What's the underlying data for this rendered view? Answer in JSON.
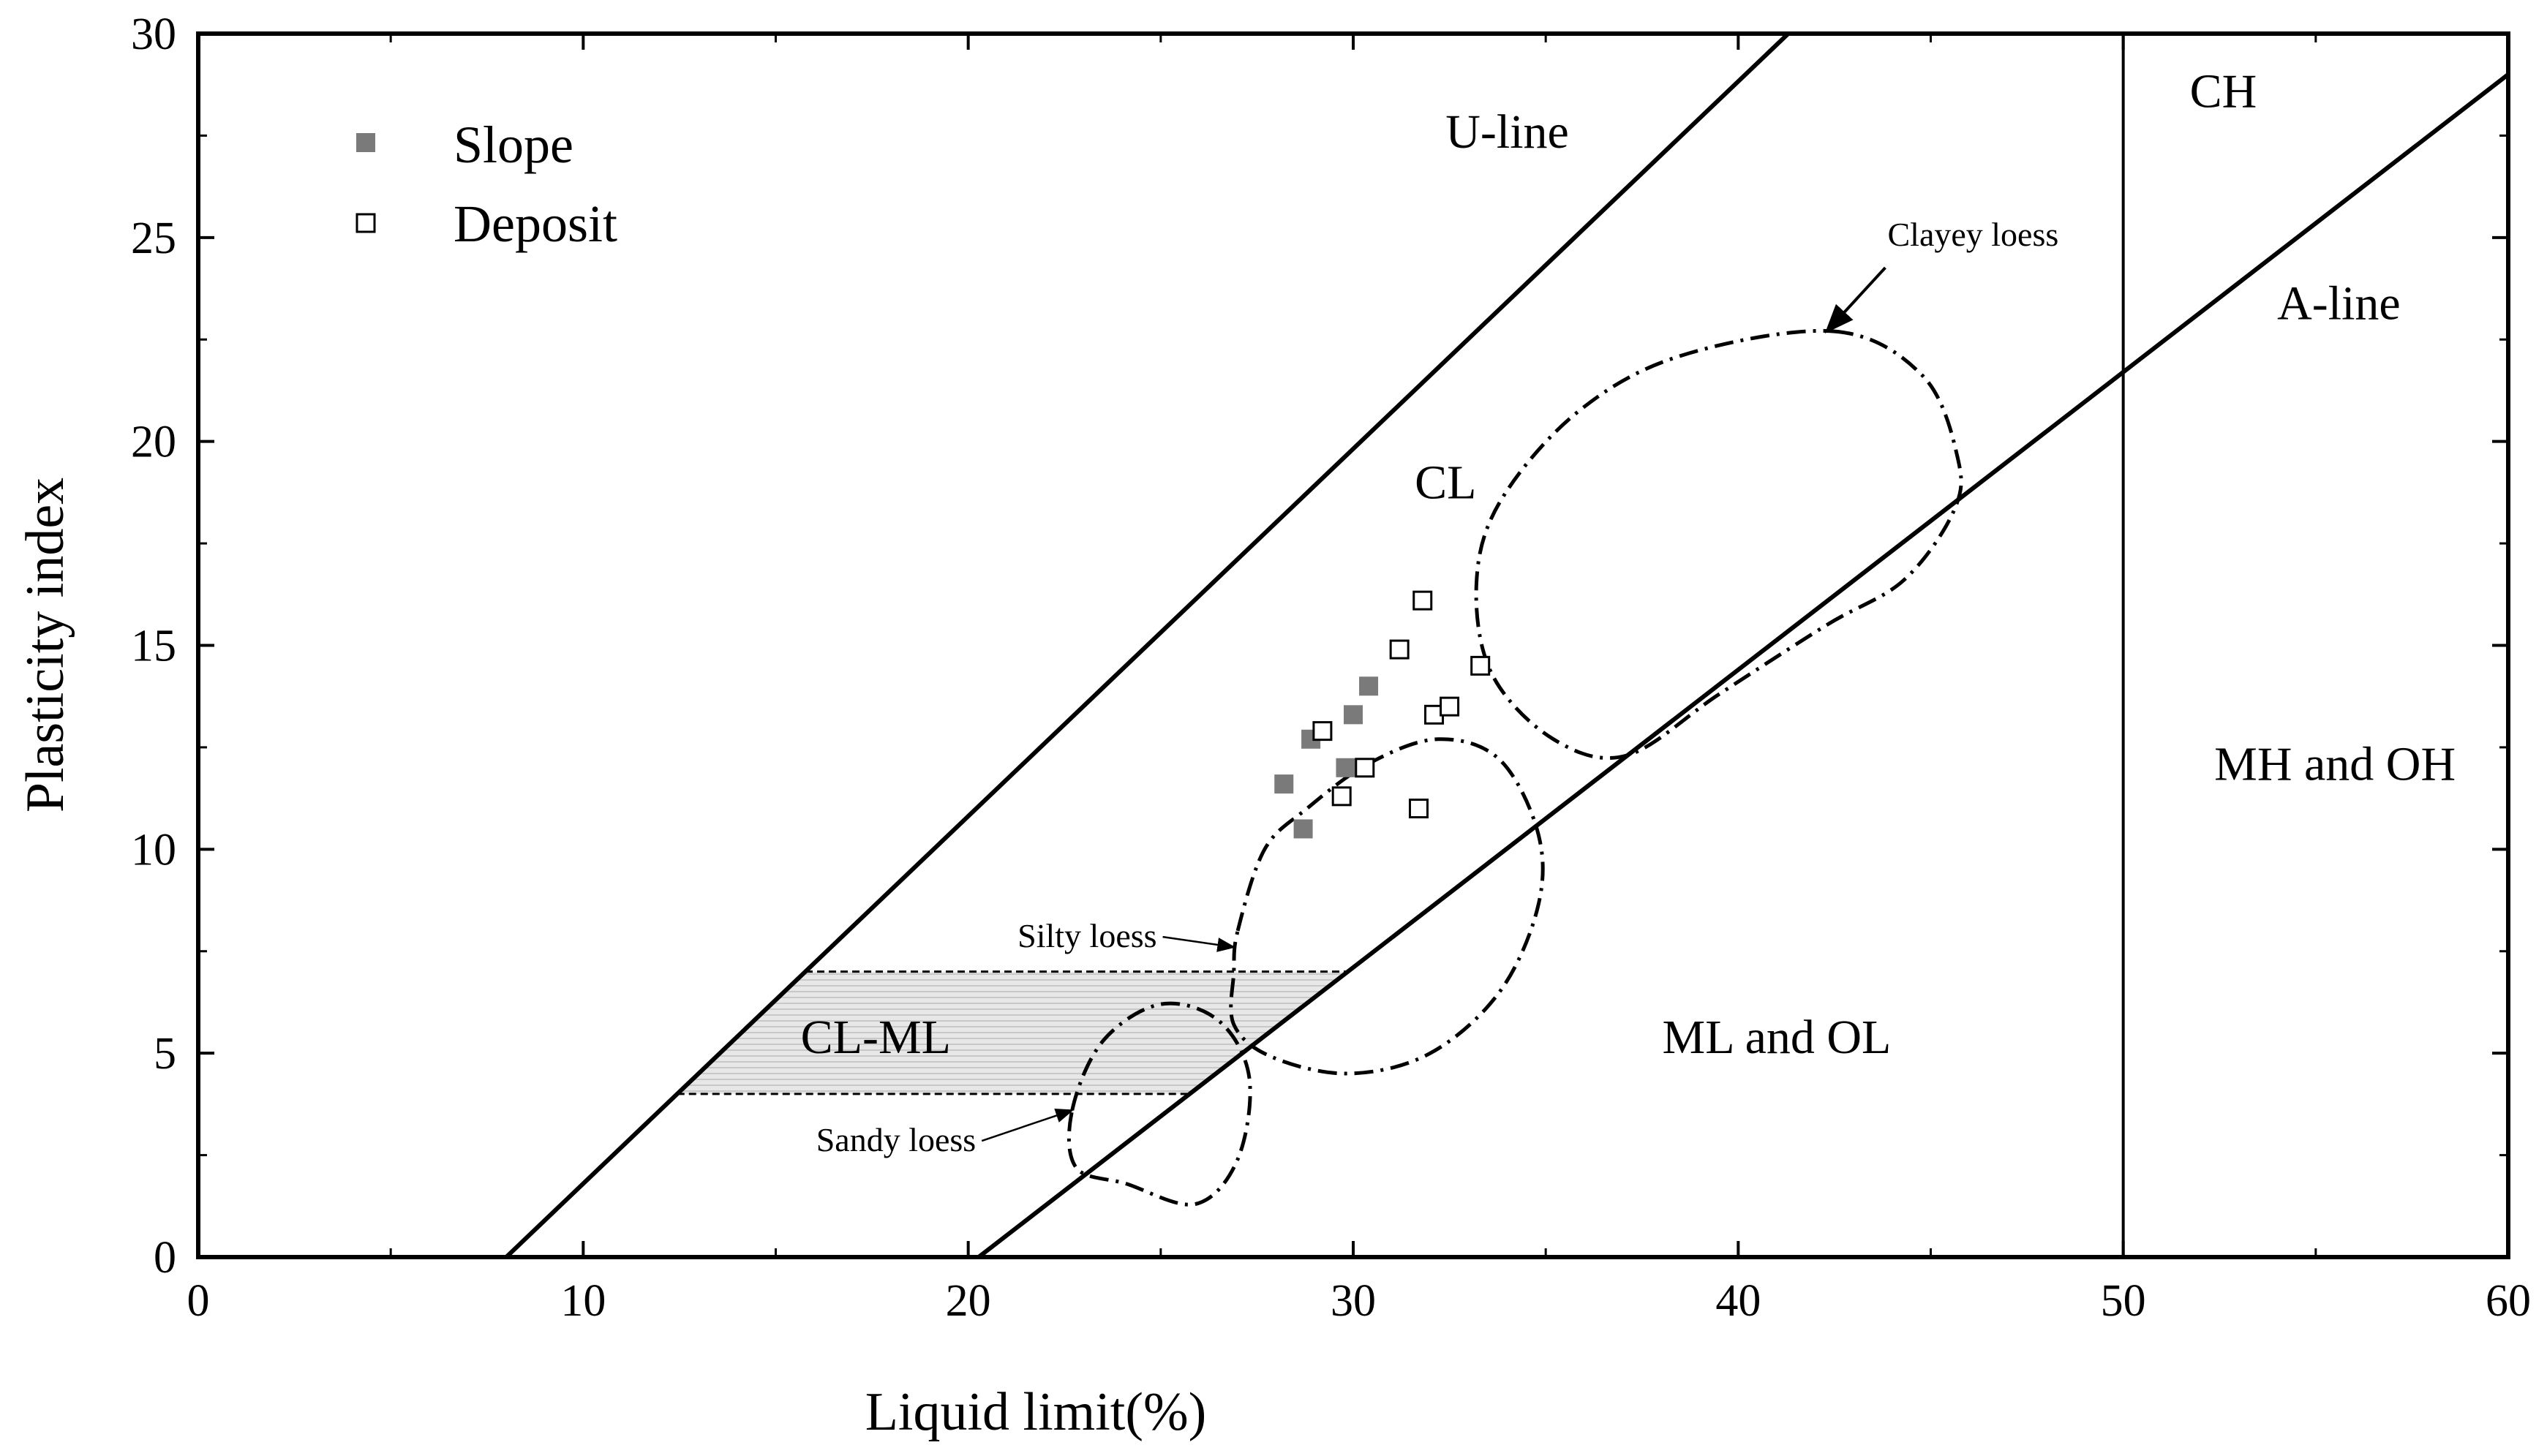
{
  "chart_data": {
    "type": "scatter",
    "title": "",
    "xlabel": "Liquid limit(%)",
    "ylabel": "Plasticity index",
    "xlim": [
      0,
      60
    ],
    "ylim": [
      0,
      30
    ],
    "xticks": [
      0,
      10,
      20,
      30,
      40,
      50,
      60
    ],
    "yticks": [
      0,
      5,
      10,
      15,
      20,
      25,
      30
    ],
    "legend_position": "top-left",
    "series": [
      {
        "name": "Slope",
        "marker": "filled-square",
        "color": "#7a7a7a",
        "points": [
          [
            28.2,
            11.6
          ],
          [
            28.7,
            10.5
          ],
          [
            28.9,
            12.7
          ],
          [
            29.8,
            12.0
          ],
          [
            30.0,
            13.3
          ],
          [
            30.4,
            14.0
          ]
        ]
      },
      {
        "name": "Deposit",
        "marker": "open-square",
        "color": "#000000",
        "points": [
          [
            29.2,
            12.9
          ],
          [
            29.7,
            11.3
          ],
          [
            30.3,
            12.0
          ],
          [
            31.2,
            14.9
          ],
          [
            31.7,
            11.0
          ],
          [
            31.8,
            16.1
          ],
          [
            32.1,
            13.3
          ],
          [
            32.5,
            13.5
          ],
          [
            33.3,
            14.5
          ]
        ]
      }
    ],
    "reference_lines": [
      {
        "name": "U-line",
        "label": "U-line",
        "points": [
          [
            8,
            0
          ],
          [
            41.3,
            30
          ]
        ]
      },
      {
        "name": "A-line",
        "label": "A-line",
        "points": [
          [
            20.27,
            0
          ],
          [
            60,
            29
          ]
        ]
      },
      {
        "name": "LL=50",
        "label": "",
        "points": [
          [
            50,
            0
          ],
          [
            50,
            30
          ]
        ]
      }
    ],
    "zone_labels": [
      {
        "text": "CH",
        "at": [
          52.6,
          28.2
        ]
      },
      {
        "text": "A-line",
        "at": [
          55.6,
          23.0
        ]
      },
      {
        "text": "U-line",
        "at": [
          34.0,
          27.2
        ]
      },
      {
        "text": "CL",
        "at": [
          32.4,
          18.6
        ]
      },
      {
        "text": "MH and OH",
        "at": [
          55.5,
          11.7
        ]
      },
      {
        "text": "ML and OL",
        "at": [
          41.0,
          5.0
        ]
      },
      {
        "text": "CL-ML",
        "at": [
          17.6,
          5.0
        ]
      }
    ],
    "cl_ml_zone": {
      "pi_min": 4,
      "pi_max": 7
    },
    "loess_regions": [
      {
        "name": "Clayey loess",
        "label": "Clayey loess",
        "label_at": [
          46.1,
          24.8
        ],
        "arrow_tip": [
          42.3,
          22.7
        ],
        "outline": [
          [
            42.5,
            22.7
          ],
          [
            44.8,
            21.6
          ],
          [
            45.7,
            19.6
          ],
          [
            45.6,
            18.3
          ],
          [
            44.3,
            16.6
          ],
          [
            42.3,
            15.5
          ],
          [
            39.5,
            13.8
          ],
          [
            37.1,
            12.3
          ],
          [
            35.2,
            12.7
          ],
          [
            33.6,
            14.3
          ],
          [
            33.2,
            16.5
          ],
          [
            33.8,
            18.5
          ],
          [
            35.8,
            20.7
          ],
          [
            38.5,
            22.1
          ],
          [
            42.5,
            22.7
          ]
        ]
      },
      {
        "name": "Silty loess",
        "label": "Silty loess",
        "label_at": [
          24.9,
          7.6
        ],
        "arrow_tip": [
          26.9,
          7.6
        ],
        "outline": [
          [
            27.0,
            8.0
          ],
          [
            27.7,
            10.0
          ],
          [
            28.8,
            11.0
          ],
          [
            30.4,
            12.1
          ],
          [
            32.2,
            12.7
          ],
          [
            33.8,
            12.2
          ],
          [
            34.8,
            10.4
          ],
          [
            34.8,
            8.6
          ],
          [
            33.8,
            6.5
          ],
          [
            32.0,
            5.0
          ],
          [
            29.9,
            4.5
          ],
          [
            27.9,
            4.9
          ],
          [
            26.9,
            5.7
          ],
          [
            26.9,
            7.0
          ],
          [
            27.0,
            8.0
          ]
        ]
      },
      {
        "name": "Sandy loess",
        "label": "Sandy loess",
        "label_at": [
          20.2,
          2.6
        ],
        "arrow_tip": [
          22.7,
          3.6
        ],
        "outline": [
          [
            22.7,
            3.6
          ],
          [
            23.5,
            5.3
          ],
          [
            25.0,
            6.2
          ],
          [
            26.5,
            5.8
          ],
          [
            27.3,
            4.4
          ],
          [
            27.0,
            2.4
          ],
          [
            25.9,
            1.3
          ],
          [
            24.1,
            1.8
          ],
          [
            22.8,
            2.2
          ],
          [
            22.7,
            3.6
          ]
        ]
      }
    ]
  }
}
